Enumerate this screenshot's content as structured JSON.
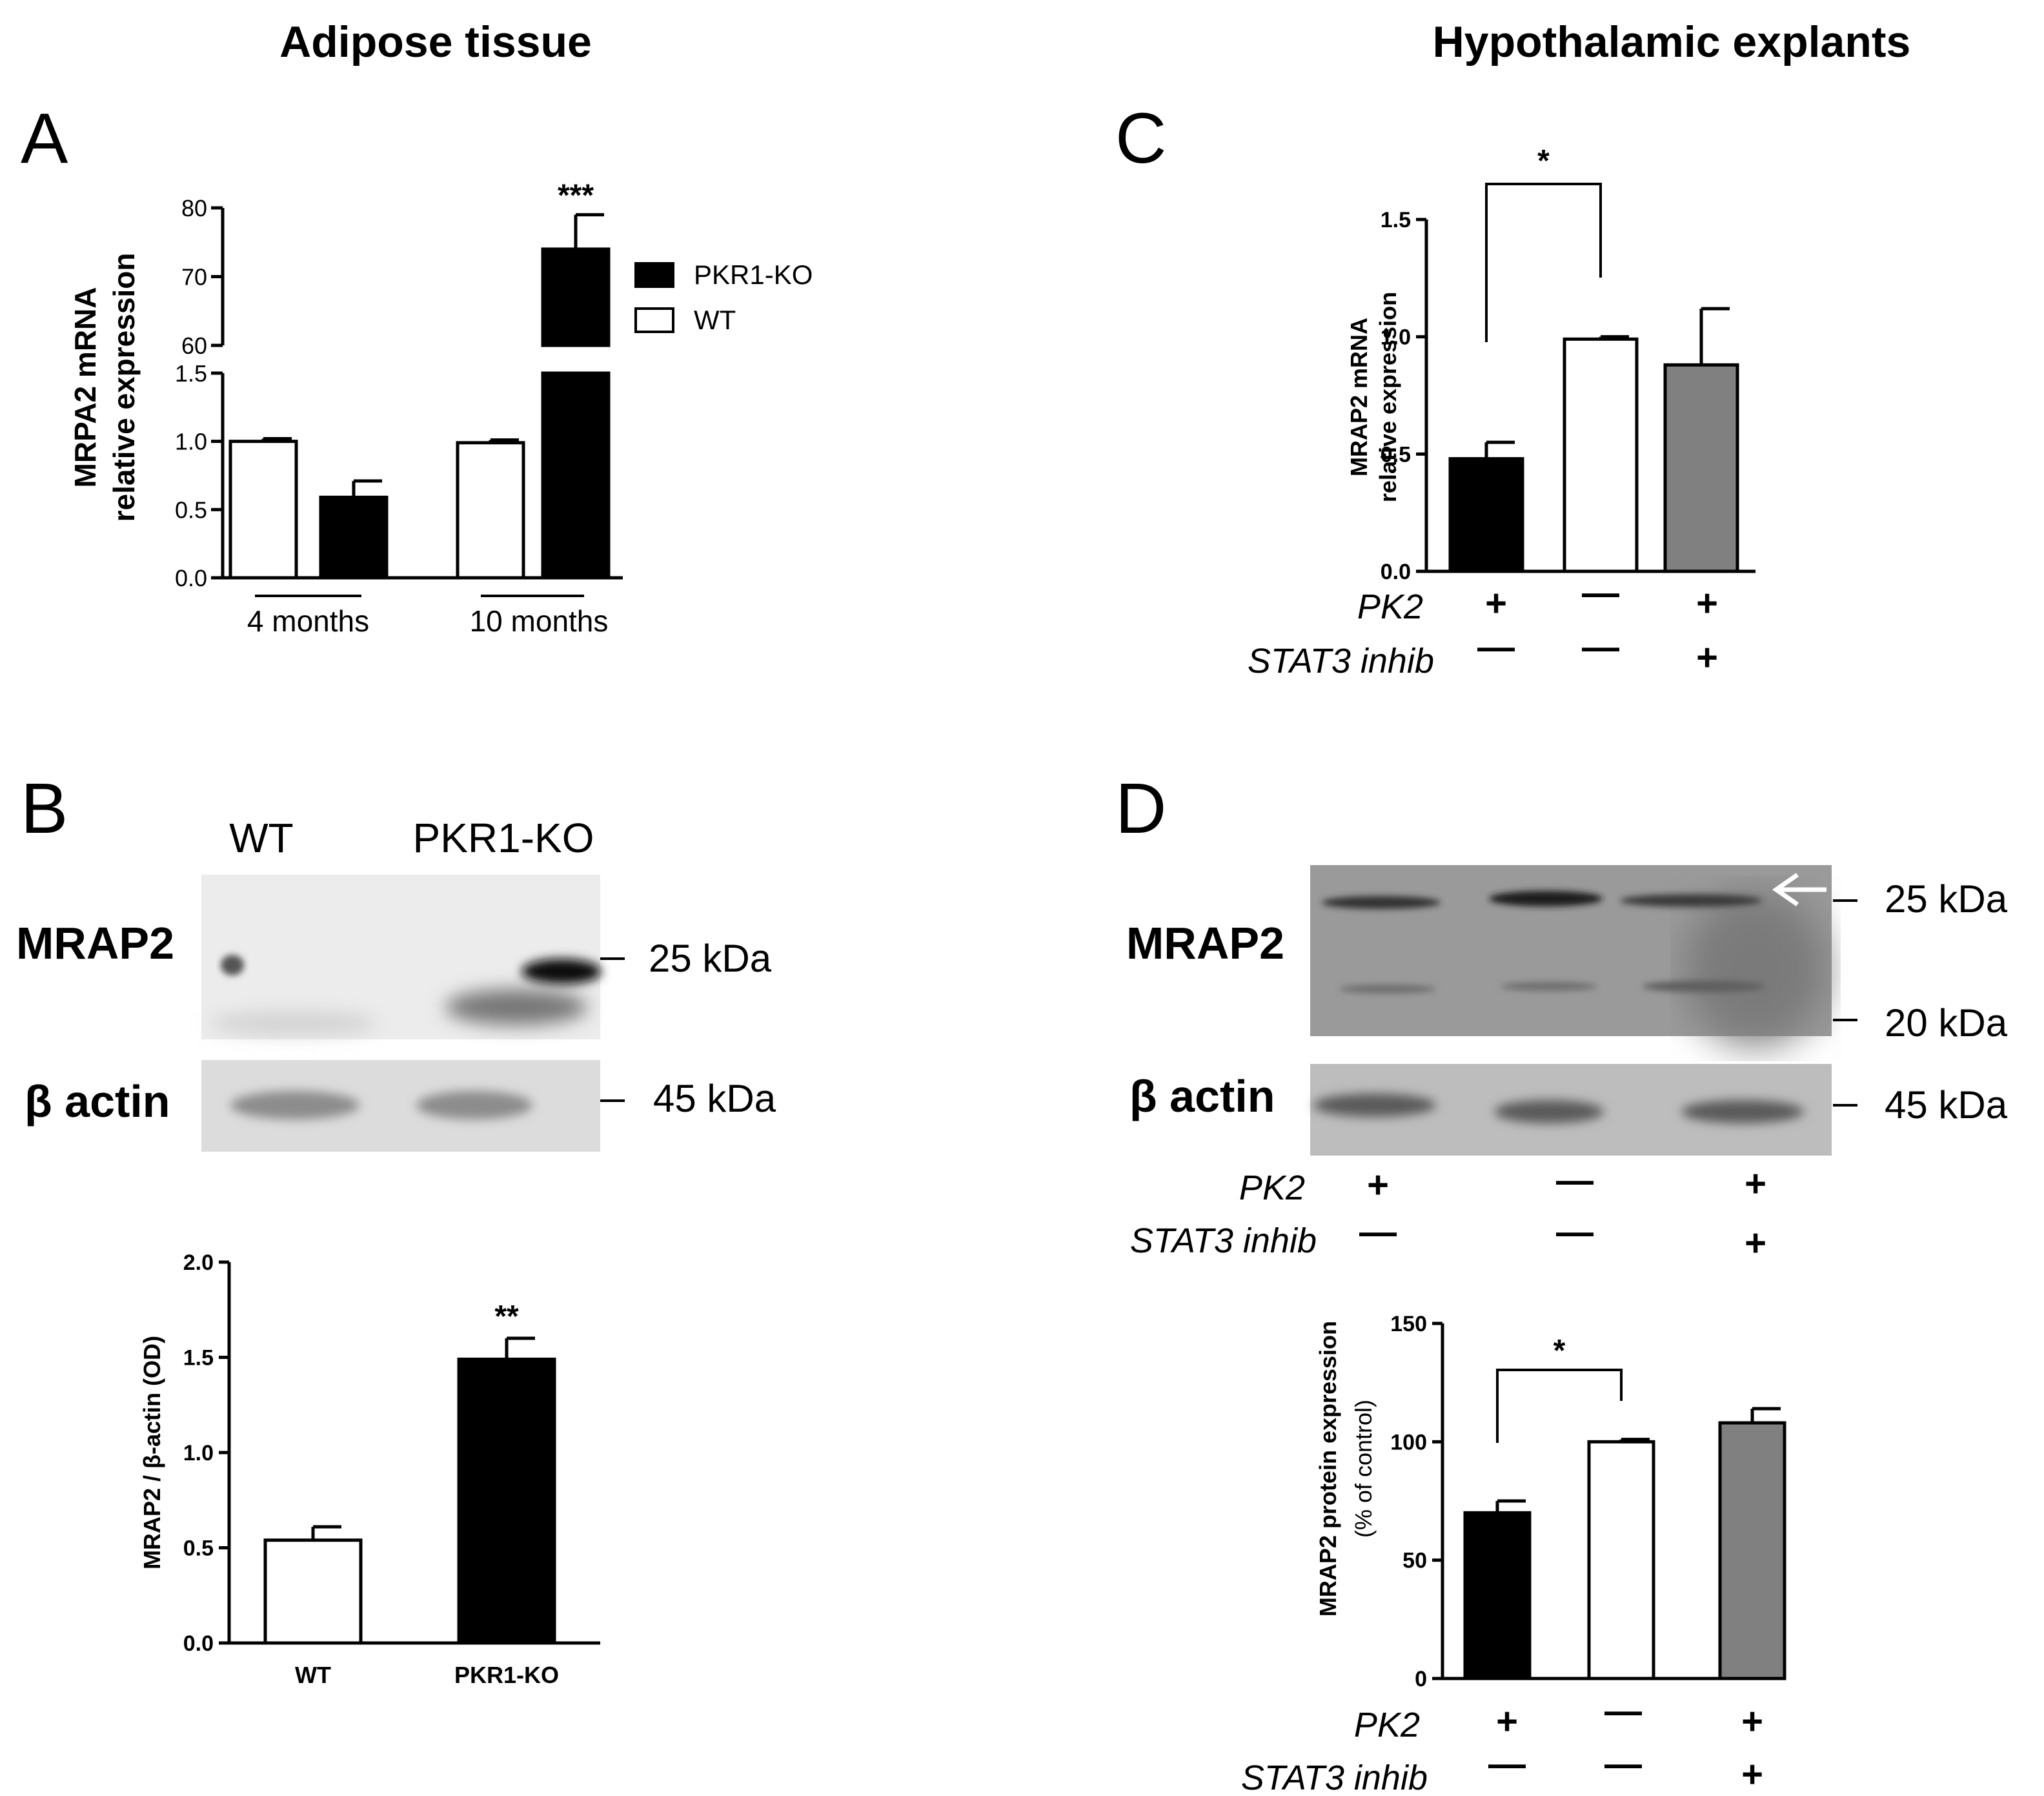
{
  "sections": {
    "left": "Adipose tissue",
    "right": "Hypothalamic explants"
  },
  "panels": {
    "A": "A",
    "B": "B",
    "C": "C",
    "D": "D"
  },
  "blotB": {
    "lanes": [
      "WT",
      "PKR1-KO"
    ],
    "row1_label": "MRAP2",
    "row2_label": "β actin",
    "marker1": "25 kDa",
    "marker2": "45 kDa"
  },
  "blotD": {
    "row1_label": "MRAP2",
    "row2_label": "β actin",
    "marker1": "25 kDa",
    "marker2": "20 kDa",
    "marker3": "45 kDa",
    "conditions": [
      {
        "name": "PK2",
        "symbols": [
          "+",
          "—",
          "+"
        ]
      },
      {
        "name": "STAT3 inhib",
        "symbols": [
          "—",
          "—",
          "+"
        ]
      }
    ]
  },
  "chart_data": [
    {
      "id": "A",
      "type": "bar",
      "broken_axis": true,
      "ylabel": [
        "MRPA2 mRNA",
        "relative expression"
      ],
      "ylim_lower": [
        0,
        1.5
      ],
      "ylim_upper": [
        60,
        80
      ],
      "yticks_lower": [
        "0.0",
        "0.5",
        "1.0",
        "1.5"
      ],
      "yticks_upper": [
        "60",
        "70",
        "80"
      ],
      "groups": [
        "4 months",
        "10 months"
      ],
      "legend": [
        {
          "name": "PKR1-KO",
          "color": "#000000"
        },
        {
          "name": "WT",
          "color": "#ffffff"
        }
      ],
      "legend_position": "right",
      "bars": [
        {
          "group": "4 months",
          "series": "WT",
          "value": 1.0,
          "error": 0.02
        },
        {
          "group": "4 months",
          "series": "PKR1-KO",
          "value": 0.59,
          "error": 0.12
        },
        {
          "group": "10 months",
          "series": "WT",
          "value": 0.99,
          "error": 0.02
        },
        {
          "group": "10 months",
          "series": "PKR1-KO",
          "value": 74,
          "error": 5
        }
      ],
      "annotations": [
        {
          "text": "***",
          "group": "10 months",
          "series": "PKR1-KO"
        }
      ]
    },
    {
      "id": "B",
      "type": "bar",
      "ylabel": "MRAP2 / β-actin (OD)",
      "ylim": [
        0,
        2.0
      ],
      "yticks": [
        "0.0",
        "0.5",
        "1.0",
        "1.5",
        "2.0"
      ],
      "categories": [
        "WT",
        "PKR1-KO"
      ],
      "values": [
        0.54,
        1.49
      ],
      "errors": [
        0.07,
        0.11
      ],
      "colors": [
        "#ffffff",
        "#000000"
      ],
      "annotations": [
        {
          "text": "**",
          "category": "PKR1-KO"
        }
      ]
    },
    {
      "id": "C",
      "type": "bar",
      "ylabel": [
        "MRAP2 mRNA",
        "relative expression"
      ],
      "ylim": [
        0,
        1.5
      ],
      "yticks": [
        "0.0",
        "0.5",
        "1.0",
        "1.5"
      ],
      "values": [
        0.48,
        0.99,
        0.88
      ],
      "errors": [
        0.07,
        0.01,
        0.24
      ],
      "colors": [
        "#000000",
        "#ffffff",
        "#808080"
      ],
      "conditions": [
        {
          "name": "PK2",
          "symbols": [
            "+",
            "—",
            "+"
          ]
        },
        {
          "name": "STAT3 inhib",
          "symbols": [
            "—",
            "—",
            "+"
          ]
        }
      ],
      "significance": [
        {
          "from": 0,
          "to": 1,
          "text": "*"
        }
      ]
    },
    {
      "id": "D",
      "type": "bar",
      "ylabel": [
        "MRAP2 protein expression",
        "(% of control)"
      ],
      "ylim": [
        0,
        150
      ],
      "yticks": [
        "0",
        "50",
        "100",
        "150"
      ],
      "values": [
        70,
        100,
        108
      ],
      "errors": [
        5,
        1,
        6
      ],
      "colors": [
        "#000000",
        "#ffffff",
        "#808080"
      ],
      "conditions": [
        {
          "name": "PK2",
          "symbols": [
            "+",
            "—",
            "+"
          ]
        },
        {
          "name": "STAT3 inhib",
          "symbols": [
            "—",
            "—",
            "+"
          ]
        }
      ],
      "significance": [
        {
          "from": 0,
          "to": 1,
          "text": "*"
        }
      ]
    }
  ]
}
